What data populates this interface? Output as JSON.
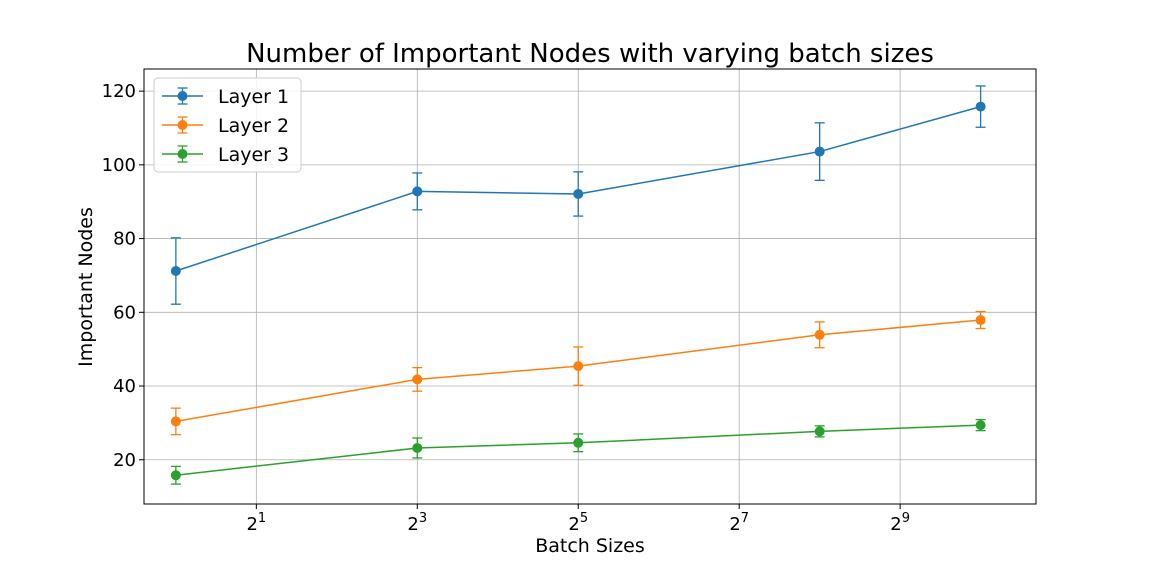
{
  "chart_data": {
    "type": "line",
    "title": "Number of Important Nodes with varying batch sizes",
    "xlabel": "Batch Sizes",
    "ylabel": "Important Nodes",
    "x_scale": "log2",
    "x": [
      1,
      8,
      32,
      256,
      1024
    ],
    "xlim": [
      0.76,
      1650
    ],
    "ylim": [
      8,
      126
    ],
    "x_ticks": [
      {
        "value": 2,
        "base": "2",
        "exp": "1"
      },
      {
        "value": 8,
        "base": "2",
        "exp": "3"
      },
      {
        "value": 32,
        "base": "2",
        "exp": "5"
      },
      {
        "value": 128,
        "base": "2",
        "exp": "7"
      },
      {
        "value": 512,
        "base": "2",
        "exp": "9"
      }
    ],
    "y_ticks": [
      20,
      40,
      60,
      80,
      100,
      120
    ],
    "grid": true,
    "legend_position": "top-left",
    "series": [
      {
        "name": "Layer 1",
        "color": "#1f77b4",
        "values": [
          71.2,
          92.8,
          92.1,
          103.6,
          115.8
        ],
        "error": [
          9.0,
          5.0,
          6.0,
          7.8,
          5.6
        ]
      },
      {
        "name": "Layer 2",
        "color": "#ff7f0e",
        "values": [
          30.4,
          41.8,
          45.4,
          53.9,
          57.9
        ],
        "error": [
          3.6,
          3.2,
          5.2,
          3.5,
          2.3
        ]
      },
      {
        "name": "Layer 3",
        "color": "#2ca02c",
        "values": [
          15.8,
          23.2,
          24.6,
          27.7,
          29.4
        ],
        "error": [
          2.4,
          2.7,
          2.4,
          1.5,
          1.5
        ]
      }
    ]
  }
}
